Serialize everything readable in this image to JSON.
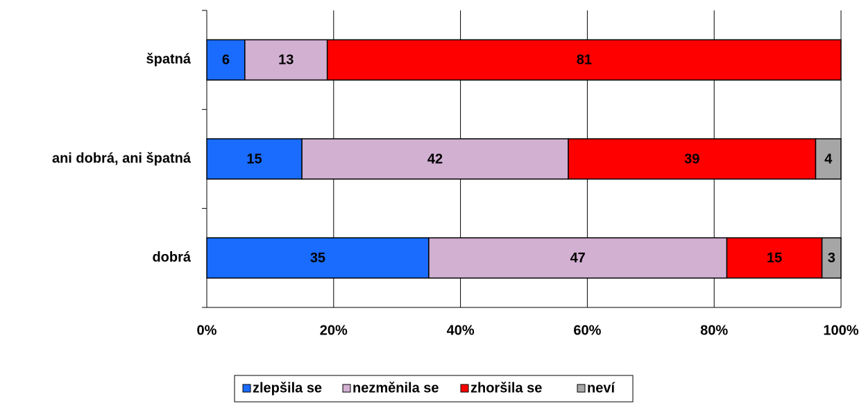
{
  "chart_data": {
    "type": "stacked_bar_horizontal",
    "categories": [
      "špatná",
      "ani dobrá, ani špatná",
      "dobrá"
    ],
    "series": [
      {
        "name": "zlepšila se",
        "color": "#1a6cff",
        "values": [
          6,
          15,
          35
        ]
      },
      {
        "name": "nezměnila se",
        "color": "#d2b0d2",
        "values": [
          13,
          42,
          47
        ]
      },
      {
        "name": "zhoršila se",
        "color": "#ff0000",
        "values": [
          81,
          39,
          15
        ]
      },
      {
        "name": "neví",
        "color": "#a6a6a6",
        "values": [
          null,
          4,
          3
        ]
      }
    ],
    "xlim": [
      0,
      100
    ],
    "xticks": [
      {
        "value": 0,
        "label": "0%"
      },
      {
        "value": 20,
        "label": "20%"
      },
      {
        "value": 40,
        "label": "40%"
      },
      {
        "value": 60,
        "label": "60%"
      },
      {
        "value": 80,
        "label": "80%"
      },
      {
        "value": 100,
        "label": "100%"
      }
    ],
    "grid": true,
    "legend": "bottom"
  }
}
